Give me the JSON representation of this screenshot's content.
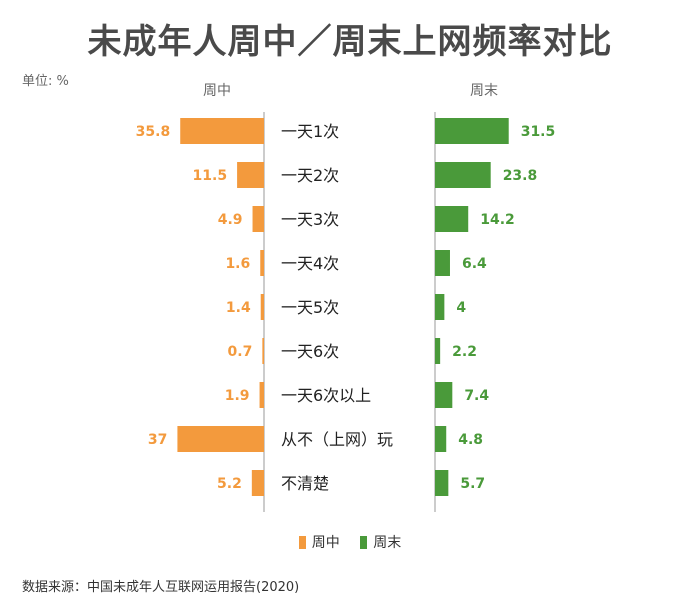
{
  "header": {
    "title": "未成年人周中／周末上网频率对比",
    "unit": "单位: %",
    "left_label": "周中",
    "right_label": "周末"
  },
  "footer": {
    "source": "数据来源：中国未成年人互联网运用报告(2020)"
  },
  "colors": {
    "weekday": "#f39a3d",
    "weekend": "#4a9a3a",
    "axis": "#999999"
  },
  "chart_data": {
    "type": "bar",
    "title": "未成年人周中／周末上网频率对比",
    "unit": "%",
    "categories": [
      "一天1次",
      "一天2次",
      "一天3次",
      "一天4次",
      "一天5次",
      "一天6次",
      "一天6次以上",
      "从不（上网）玩",
      "不清楚"
    ],
    "series": [
      {
        "name": "周中",
        "values": [
          35.8,
          11.5,
          4.9,
          1.6,
          1.4,
          0.7,
          1.9,
          37,
          5.2
        ]
      },
      {
        "name": "周末",
        "values": [
          31.5,
          23.8,
          14.2,
          6.4,
          4,
          2.2,
          7.4,
          4.8,
          5.7
        ]
      }
    ],
    "legend": "bottom-center"
  }
}
